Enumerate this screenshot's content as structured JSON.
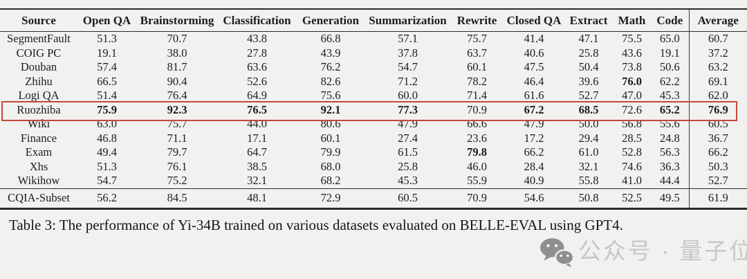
{
  "table": {
    "columns": [
      "Source",
      "Open QA",
      "Brainstorming",
      "Classification",
      "Generation",
      "Summarization",
      "Rewrite",
      "Closed QA",
      "Extract",
      "Math",
      "Code",
      "Average"
    ],
    "rows": [
      {
        "source": "SegmentFault",
        "values": [
          "51.3",
          "70.7",
          "43.8",
          "66.8",
          "57.1",
          "75.7",
          "41.4",
          "47.1",
          "75.5",
          "65.0",
          "60.7"
        ],
        "bold": [],
        "highlighted": false,
        "separator_above": false
      },
      {
        "source": "COIG PC",
        "values": [
          "19.1",
          "38.0",
          "27.8",
          "43.9",
          "37.8",
          "63.7",
          "40.6",
          "25.8",
          "43.6",
          "19.1",
          "37.2"
        ],
        "bold": [],
        "highlighted": false,
        "separator_above": false
      },
      {
        "source": "Douban",
        "values": [
          "57.4",
          "81.7",
          "63.6",
          "76.2",
          "54.7",
          "60.1",
          "47.5",
          "50.4",
          "73.8",
          "50.6",
          "63.2"
        ],
        "bold": [],
        "highlighted": false,
        "separator_above": false
      },
      {
        "source": "Zhihu",
        "values": [
          "66.5",
          "90.4",
          "52.6",
          "82.6",
          "71.2",
          "78.2",
          "46.4",
          "39.6",
          "76.0",
          "62.2",
          "69.1"
        ],
        "bold": [
          8
        ],
        "highlighted": false,
        "separator_above": false
      },
      {
        "source": "Logi QA",
        "values": [
          "51.4",
          "76.4",
          "64.9",
          "75.6",
          "60.0",
          "71.4",
          "61.6",
          "52.7",
          "47.0",
          "45.3",
          "62.0"
        ],
        "bold": [],
        "highlighted": false,
        "separator_above": false
      },
      {
        "source": "Ruozhiba",
        "values": [
          "75.9",
          "92.3",
          "76.5",
          "92.1",
          "77.3",
          "70.9",
          "67.2",
          "68.5",
          "72.6",
          "65.2",
          "76.9"
        ],
        "bold": [
          0,
          1,
          2,
          3,
          4,
          6,
          7,
          9,
          10
        ],
        "highlighted": true,
        "separator_above": false
      },
      {
        "source": "Wiki",
        "values": [
          "63.0",
          "75.7",
          "44.0",
          "80.6",
          "47.9",
          "66.6",
          "47.9",
          "50.0",
          "56.8",
          "55.6",
          "60.5"
        ],
        "bold": [],
        "highlighted": false,
        "separator_above": false
      },
      {
        "source": "Finance",
        "values": [
          "46.8",
          "71.1",
          "17.1",
          "60.1",
          "27.4",
          "23.6",
          "17.2",
          "29.4",
          "28.5",
          "24.8",
          "36.7"
        ],
        "bold": [],
        "highlighted": false,
        "separator_above": false
      },
      {
        "source": "Exam",
        "values": [
          "49.4",
          "79.7",
          "64.7",
          "79.9",
          "61.5",
          "79.8",
          "66.2",
          "61.0",
          "52.8",
          "56.3",
          "66.2"
        ],
        "bold": [
          5
        ],
        "highlighted": false,
        "separator_above": false
      },
      {
        "source": "Xhs",
        "values": [
          "51.3",
          "76.1",
          "38.5",
          "68.0",
          "25.8",
          "46.0",
          "28.4",
          "32.1",
          "74.6",
          "36.3",
          "50.3"
        ],
        "bold": [],
        "highlighted": false,
        "separator_above": false
      },
      {
        "source": "Wikihow",
        "values": [
          "54.7",
          "75.2",
          "32.1",
          "68.2",
          "45.3",
          "55.9",
          "40.9",
          "55.8",
          "41.0",
          "44.4",
          "52.7"
        ],
        "bold": [],
        "highlighted": false,
        "separator_above": false
      },
      {
        "source": "CQIA-Subset",
        "values": [
          "56.2",
          "84.5",
          "48.1",
          "72.9",
          "60.5",
          "70.9",
          "54.6",
          "50.8",
          "52.5",
          "49.5",
          "61.9"
        ],
        "bold": [],
        "highlighted": false,
        "separator_above": true
      }
    ],
    "highlighted_row": "Ruozhiba"
  },
  "caption": "Table 3: The performance of Yi-34B trained on various datasets evaluated on BELLE-EVAL using GPT4.",
  "watermark": {
    "icon": "wechat-icon",
    "text": "公众号 · 量子位"
  },
  "colors": {
    "background": "#f1f1ef",
    "text": "#1c1c1c",
    "rule": "#2b2b2b",
    "highlight_box": "#c4473a",
    "watermark_icon": "#8f8f8f",
    "watermark_text": "#c7c7c5"
  }
}
